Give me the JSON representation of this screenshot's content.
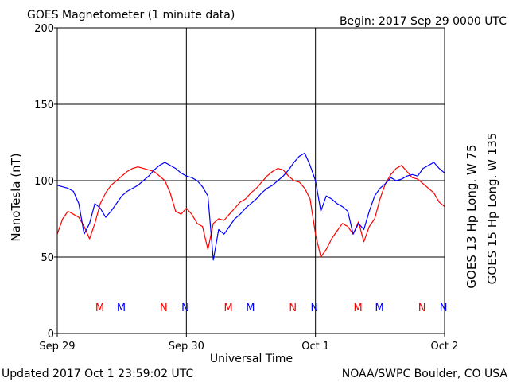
{
  "header": {
    "title": "GOES Magnetometer (1 minute data)",
    "begin": "Begin:  2017 Sep 29 0000 UTC"
  },
  "footer": {
    "updated": "Updated 2017 Oct  1 23:59:02 UTC",
    "source": "NOAA/SWPC Boulder, CO USA"
  },
  "colors": {
    "goes13": "#ff0000",
    "goes15": "#0000ff"
  },
  "chart_data": {
    "type": "line",
    "xlabel": "Universal Time",
    "ylabel": "NanoTesla (nT)",
    "xlim": [
      0,
      72
    ],
    "ylim": [
      0,
      200
    ],
    "x_unit": "hours since 2017 Sep 29 0000 UTC",
    "yticks": [
      0,
      50,
      100,
      150,
      200
    ],
    "xticks": [
      {
        "x": 0,
        "label": "Sep 29"
      },
      {
        "x": 24,
        "label": "Sep 30"
      },
      {
        "x": 48,
        "label": "Oct 1"
      },
      {
        "x": 72,
        "label": "Oct 2"
      }
    ],
    "grid": true,
    "series": [
      {
        "name": "GOES 13 Hp  Long. W 75",
        "color": "#ff0000",
        "x": [
          0,
          1,
          2,
          3,
          4,
          5,
          6,
          7,
          8,
          9,
          10,
          11,
          12,
          13,
          14,
          15,
          16,
          17,
          18,
          19,
          20,
          21,
          22,
          23,
          24,
          25,
          26,
          27,
          28,
          29,
          30,
          31,
          32,
          33,
          34,
          35,
          36,
          37,
          38,
          39,
          40,
          41,
          42,
          43,
          44,
          45,
          46,
          47,
          48,
          49,
          50,
          51,
          52,
          53,
          54,
          55,
          56,
          57,
          58,
          59,
          60,
          61,
          62,
          63,
          64,
          65,
          66,
          67,
          68,
          69,
          70,
          71,
          72
        ],
        "y": [
          65,
          75,
          80,
          78,
          76,
          70,
          62,
          72,
          85,
          92,
          97,
          100,
          103,
          106,
          108,
          109,
          108,
          107,
          106,
          103,
          100,
          92,
          80,
          78,
          82,
          78,
          72,
          70,
          55,
          72,
          75,
          74,
          78,
          82,
          86,
          88,
          92,
          95,
          99,
          103,
          106,
          108,
          107,
          103,
          100,
          99,
          95,
          88,
          65,
          50,
          55,
          62,
          67,
          72,
          70,
          65,
          73,
          60,
          70,
          75,
          88,
          98,
          104,
          108,
          110,
          106,
          102,
          101,
          98,
          95,
          92,
          86,
          83
        ]
      },
      {
        "name": "GOES 15 Hp  Long. W 135",
        "color": "#0000ff",
        "x": [
          0,
          1,
          2,
          3,
          4,
          5,
          6,
          7,
          8,
          9,
          10,
          11,
          12,
          13,
          14,
          15,
          16,
          17,
          18,
          19,
          20,
          21,
          22,
          23,
          24,
          25,
          26,
          27,
          28,
          29,
          30,
          31,
          32,
          33,
          34,
          35,
          36,
          37,
          38,
          39,
          40,
          41,
          42,
          43,
          44,
          45,
          46,
          47,
          48,
          49,
          50,
          51,
          52,
          53,
          54,
          55,
          56,
          57,
          58,
          59,
          60,
          61,
          62,
          63,
          64,
          65,
          66,
          67,
          68,
          69,
          70,
          71,
          72
        ],
        "y": [
          97,
          96,
          95,
          93,
          85,
          65,
          72,
          85,
          82,
          76,
          80,
          85,
          90,
          93,
          95,
          97,
          100,
          103,
          107,
          110,
          112,
          110,
          108,
          105,
          103,
          102,
          100,
          96,
          90,
          48,
          68,
          65,
          70,
          75,
          78,
          82,
          85,
          88,
          92,
          95,
          97,
          100,
          103,
          107,
          112,
          116,
          118,
          110,
          100,
          80,
          90,
          88,
          85,
          83,
          80,
          65,
          72,
          68,
          80,
          90,
          95,
          98,
          102,
          100,
          101,
          103,
          104,
          103,
          108,
          110,
          112,
          108,
          105
        ]
      }
    ],
    "annotations": [
      {
        "x": 7.9,
        "label": "M",
        "series": "GOES 13 Hp  Long. W 75"
      },
      {
        "x": 11.9,
        "label": "M",
        "series": "GOES 15 Hp  Long. W 135"
      },
      {
        "x": 19.8,
        "label": "N",
        "series": "GOES 13 Hp  Long. W 75"
      },
      {
        "x": 23.8,
        "label": "N",
        "series": "GOES 15 Hp  Long. W 135"
      },
      {
        "x": 31.8,
        "label": "M",
        "series": "GOES 13 Hp  Long. W 75"
      },
      {
        "x": 35.9,
        "label": "M",
        "series": "GOES 15 Hp  Long. W 135"
      },
      {
        "x": 43.8,
        "label": "N",
        "series": "GOES 13 Hp  Long. W 75"
      },
      {
        "x": 47.8,
        "label": "N",
        "series": "GOES 15 Hp  Long. W 135"
      },
      {
        "x": 55.9,
        "label": "M",
        "series": "GOES 13 Hp  Long. W 75"
      },
      {
        "x": 59.9,
        "label": "M",
        "series": "GOES 15 Hp  Long. W 135"
      },
      {
        "x": 67.8,
        "label": "N",
        "series": "GOES 13 Hp  Long. W 75"
      },
      {
        "x": 71.8,
        "label": "N",
        "series": "GOES 15 Hp  Long. W 135"
      }
    ]
  }
}
